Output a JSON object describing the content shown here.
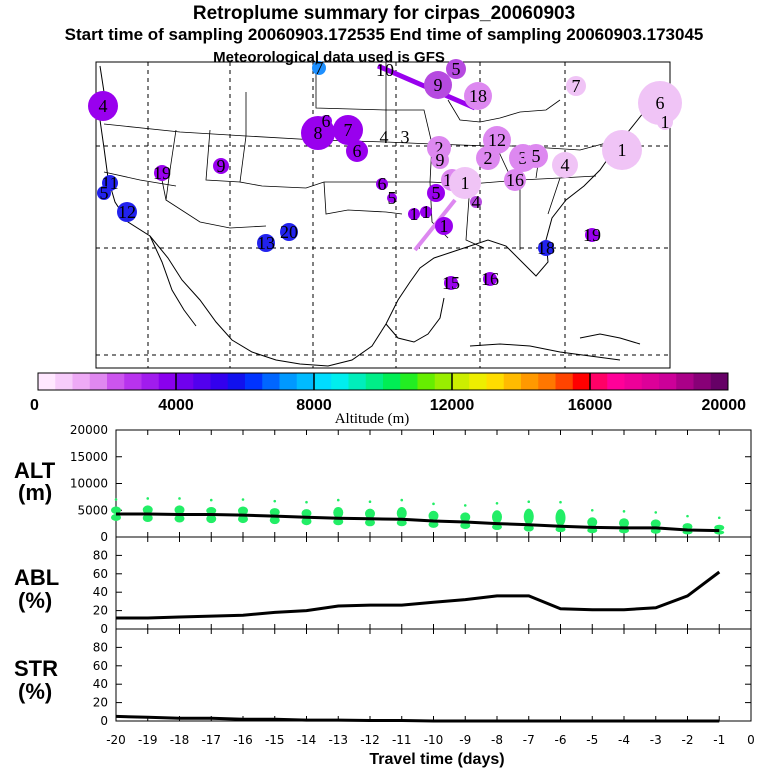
{
  "header": {
    "title": "Retroplume summary for cirpas_20060903",
    "sampling": "Start time of sampling 20060903.172535     End time of sampling 20060903.173045",
    "met": "Meteorological data used is GFS"
  },
  "colors": {
    "purple": "#9900ee",
    "violet": "#b64ae0",
    "lilac": "#dd88f0",
    "pink": "#f0c4f6",
    "blue": "#2222ee",
    "azure": "#1e90ff",
    "green": "#22ee66",
    "line": "#000000"
  },
  "colorbar": {
    "ticks": [
      "0",
      "4000",
      "8000",
      "12000",
      "16000",
      "20000"
    ],
    "label": "Altitude (m)",
    "colors": [
      "#ffe8ff",
      "#f7ccfb",
      "#eeaaf6",
      "#e088f0",
      "#cc55ee",
      "#b833ee",
      "#a11ced",
      "#8a00ee",
      "#7000ee",
      "#5200ee",
      "#3300ee",
      "#1111ee",
      "#0033ff",
      "#0066ff",
      "#0099ff",
      "#00bbff",
      "#00ddff",
      "#00eeee",
      "#00eebb",
      "#00ee88",
      "#00ee55",
      "#22ee22",
      "#66ee00",
      "#99ee00",
      "#ccee00",
      "#eeee00",
      "#ffdd00",
      "#ffbb00",
      "#ff9900",
      "#ff7700",
      "#ff4400",
      "#ff0000",
      "#ff0066",
      "#ff0099",
      "#ee0099",
      "#dd0099",
      "#cc0099",
      "#aa0088",
      "#880077",
      "#660066"
    ]
  },
  "map_points": [
    {
      "label": "4",
      "color": "purple"
    },
    {
      "label": "7",
      "color": "azure"
    },
    {
      "label": "10",
      "color": "lilac"
    },
    {
      "label": "5",
      "color": "violet"
    },
    {
      "label": "9",
      "color": "violet"
    },
    {
      "label": "18",
      "color": "lilac"
    },
    {
      "label": "7",
      "color": "pink"
    },
    {
      "label": "6",
      "color": "pink"
    },
    {
      "label": "8",
      "color": "purple"
    },
    {
      "label": "6",
      "color": "purple"
    },
    {
      "label": "7",
      "color": "purple"
    },
    {
      "label": "6",
      "color": "purple"
    },
    {
      "label": "4",
      "color": "none"
    },
    {
      "label": "3",
      "color": "none"
    },
    {
      "label": "9",
      "color": "purple"
    },
    {
      "label": "19",
      "color": "purple"
    },
    {
      "label": "11",
      "color": "blue"
    },
    {
      "label": "5",
      "color": "blue"
    },
    {
      "label": "12",
      "color": "blue"
    },
    {
      "label": "13",
      "color": "blue"
    },
    {
      "label": "20",
      "color": "blue"
    },
    {
      "label": "2",
      "color": "lilac"
    },
    {
      "label": "9",
      "color": "lilac"
    },
    {
      "label": "12",
      "color": "lilac"
    },
    {
      "label": "2",
      "color": "lilac"
    },
    {
      "label": "3",
      "color": "lilac"
    },
    {
      "label": "5",
      "color": "lilac"
    },
    {
      "label": "4",
      "color": "pink"
    },
    {
      "label": "1",
      "color": "pink"
    },
    {
      "label": "6",
      "color": "purple"
    },
    {
      "label": "5",
      "color": "purple"
    },
    {
      "label": "5",
      "color": "purple"
    },
    {
      "label": "14",
      "color": "lilac"
    },
    {
      "label": "1",
      "color": "purple"
    },
    {
      "label": "16",
      "color": "lilac"
    },
    {
      "label": "4",
      "color": "violet"
    },
    {
      "label": "1",
      "color": "purple"
    },
    {
      "label": "1",
      "color": "purple"
    },
    {
      "label": "1",
      "color": "pink"
    },
    {
      "label": "18",
      "color": "blue"
    },
    {
      "label": "19",
      "color": "purple"
    },
    {
      "label": "15",
      "color": "purple"
    },
    {
      "label": "16",
      "color": "purple"
    },
    {
      "label": "1",
      "color": "pink"
    }
  ],
  "chart_data": [
    {
      "type": "line",
      "panel": "ALT",
      "ylabel": "ALT (m)",
      "ylim": [
        0,
        20000
      ],
      "yticks": [
        0,
        5000,
        10000,
        15000,
        20000
      ],
      "x": [
        -20,
        -19,
        -18,
        -17,
        -16,
        -15,
        -14,
        -13,
        -12,
        -11,
        -10,
        -9,
        -8,
        -7,
        -6,
        -5,
        -4,
        -3,
        -2,
        -1
      ],
      "series": [
        {
          "name": "median altitude",
          "values": [
            4300,
            4300,
            4200,
            4200,
            4100,
            3900,
            3700,
            3500,
            3400,
            3300,
            3000,
            2800,
            2500,
            2300,
            2000,
            1800,
            1700,
            1700,
            1300,
            1200
          ]
        },
        {
          "name": "upper spread",
          "values": [
            5700,
            5900,
            5900,
            5600,
            5700,
            5400,
            5200,
            5600,
            5300,
            5600,
            4900,
            4600,
            5000,
            5300,
            5200,
            3700,
            3500,
            3300,
            2600,
            2300
          ]
        },
        {
          "name": "lower spread",
          "values": [
            3000,
            2800,
            2700,
            2600,
            2600,
            2400,
            2200,
            2200,
            2000,
            2000,
            1700,
            1500,
            1300,
            1000,
            900,
            700,
            700,
            600,
            500,
            500
          ]
        }
      ]
    },
    {
      "type": "line",
      "panel": "ABL",
      "ylabel": "ABL (%)",
      "ylim": [
        0,
        100
      ],
      "yticks": [
        0,
        20,
        40,
        60,
        80
      ],
      "x": [
        -20,
        -19,
        -18,
        -17,
        -16,
        -15,
        -14,
        -13,
        -12,
        -11,
        -10,
        -9,
        -8,
        -7,
        -6,
        -5,
        -4,
        -3,
        -2,
        -1
      ],
      "series": [
        {
          "name": "ABL fraction",
          "values": [
            12,
            12,
            13,
            14,
            15,
            18,
            20,
            25,
            26,
            26,
            29,
            32,
            36,
            36,
            22,
            21,
            21,
            23,
            36,
            62
          ]
        }
      ]
    },
    {
      "type": "line",
      "panel": "STR",
      "ylabel": "STR (%)",
      "ylim": [
        0,
        100
      ],
      "yticks": [
        0,
        20,
        40,
        60,
        80
      ],
      "x": [
        -20,
        -19,
        -18,
        -17,
        -16,
        -15,
        -14,
        -13,
        -12,
        -11,
        -10,
        -9,
        -8,
        -7,
        -6,
        -5,
        -4,
        -3,
        -2,
        -1
      ],
      "series": [
        {
          "name": "stratospheric fraction",
          "values": [
            5,
            4,
            3,
            3,
            2,
            2,
            1,
            1,
            0.5,
            0.5,
            0,
            0,
            0,
            0,
            0,
            0,
            0,
            0,
            0,
            0
          ]
        }
      ]
    }
  ],
  "xaxis": {
    "xlabel": "Travel time (days)",
    "ticks": [
      "-20",
      "-19",
      "-18",
      "-17",
      "-16",
      "-15",
      "-14",
      "-13",
      "-12",
      "-11",
      "-10",
      "-9",
      "-8",
      "-7",
      "-6",
      "-5",
      "-4",
      "-3",
      "-2",
      "-1",
      "0"
    ]
  },
  "panels": {
    "alt": {
      "l1": "ALT",
      "l2": "(m)"
    },
    "abl": {
      "l1": "ABL",
      "l2": "(%)"
    },
    "str": {
      "l1": "STR",
      "l2": "(%)"
    }
  }
}
